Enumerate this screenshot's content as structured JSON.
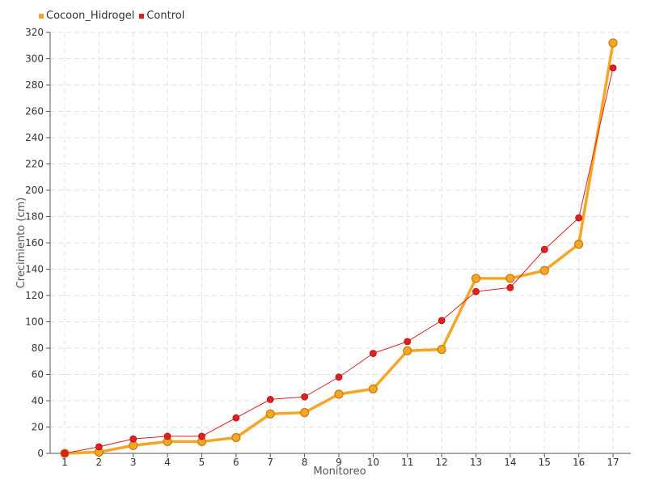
{
  "chart_data": {
    "type": "line",
    "xlabel": "Monitoreo",
    "ylabel": "Crecimiento (cm)",
    "categories": [
      "1",
      "2",
      "3",
      "4",
      "5",
      "6",
      "7",
      "8",
      "9",
      "10",
      "11",
      "12",
      "13",
      "14",
      "15",
      "16",
      "17"
    ],
    "ylim": [
      0,
      320
    ],
    "yticks": [
      0,
      20,
      40,
      60,
      80,
      100,
      120,
      140,
      160,
      180,
      200,
      220,
      240,
      260,
      280,
      300,
      320
    ],
    "grid": true,
    "legend_position": "top-left",
    "series": [
      {
        "name": "Cocoon_Hidrogel",
        "color": "#f5a623",
        "values": [
          0,
          1,
          6,
          9,
          9,
          12,
          30,
          31,
          45,
          49,
          78,
          79,
          133,
          133,
          139,
          159,
          312
        ]
      },
      {
        "name": "Control",
        "color": "#e02020",
        "values": [
          0,
          5,
          11,
          13,
          13,
          27,
          41,
          43,
          58,
          76,
          85,
          101,
          123,
          126,
          155,
          179,
          293
        ]
      }
    ]
  }
}
